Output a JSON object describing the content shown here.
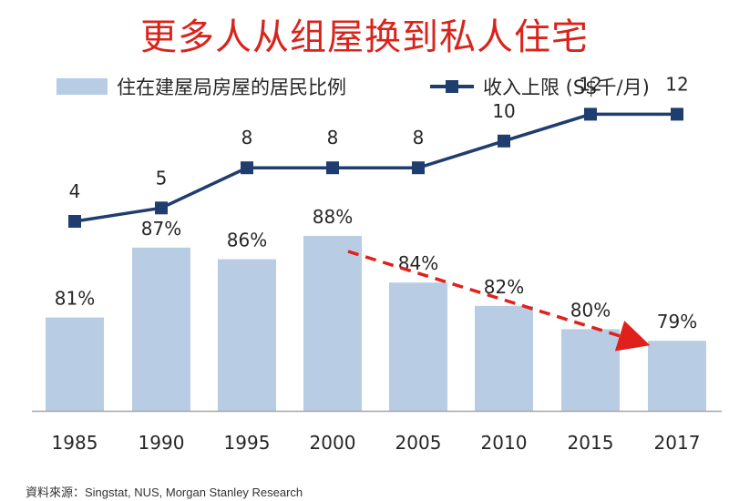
{
  "title": "更多人从组屋换到私人住宅",
  "legend": {
    "bar_label": "住在建屋局房屋的居民比例",
    "line_label": "收入上限 (S$千/月)"
  },
  "source": "資料來源：Singstat, NUS, Morgan Stanley Research",
  "colors": {
    "title": "#d9241c",
    "bar": "#b8cce4",
    "line": "#1f3d6e",
    "trend_arrow": "#e0201b"
  },
  "chart_data": {
    "type": "bar",
    "categories": [
      "1985",
      "1990",
      "1995",
      "2000",
      "2005",
      "2010",
      "2015",
      "2017"
    ],
    "series": [
      {
        "name": "住在建屋局房屋的居民比例",
        "type": "bar",
        "values": [
          81,
          87,
          86,
          88,
          84,
          82,
          80,
          79
        ],
        "labels": [
          "81%",
          "87%",
          "86%",
          "88%",
          "84%",
          "82%",
          "80%",
          "79%"
        ]
      },
      {
        "name": "收入上限 (S$千/月)",
        "type": "line",
        "marker": "square",
        "values": [
          4,
          5,
          8,
          8,
          8,
          10,
          12,
          12
        ],
        "labels": [
          "4",
          "5",
          "8",
          "8",
          "8",
          "10",
          "12",
          "12"
        ]
      }
    ],
    "annotations": [
      {
        "type": "dashed-arrow",
        "from_category": "2000",
        "to_category": "2017",
        "description": ""
      }
    ],
    "grid": false
  }
}
